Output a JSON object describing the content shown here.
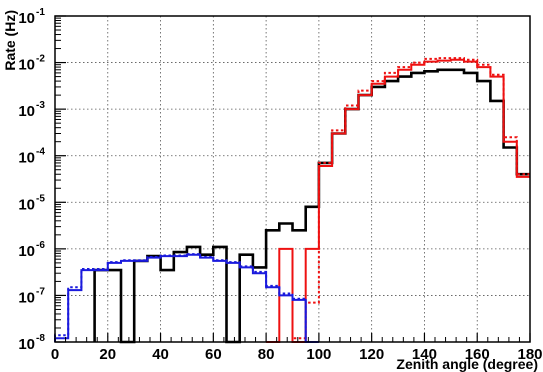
{
  "chart_data": {
    "type": "line",
    "xlabel": "Zenith angle (degree)",
    "ylabel": "Rate (Hz)",
    "xlim": [
      0,
      180
    ],
    "ylim": [
      1e-08,
      0.1
    ],
    "yscale": "log",
    "grid": true,
    "x_ticks": [
      0,
      20,
      40,
      60,
      80,
      100,
      120,
      140,
      160,
      180
    ],
    "y_ticks": [
      {
        "value": 1e-08,
        "label": "10",
        "exp": "-8"
      },
      {
        "value": 1e-07,
        "label": "10",
        "exp": "-7"
      },
      {
        "value": 1e-06,
        "label": "10",
        "exp": "-6"
      },
      {
        "value": 1e-05,
        "label": "10",
        "exp": "-5"
      },
      {
        "value": 0.0001,
        "label": "10",
        "exp": "-4"
      },
      {
        "value": 0.001,
        "label": "10",
        "exp": "-3"
      },
      {
        "value": 0.01,
        "label": "10",
        "exp": "-2"
      },
      {
        "value": 0.1,
        "label": "10",
        "exp": "-1"
      }
    ],
    "bin_edges": [
      0,
      5,
      10,
      15,
      20,
      25,
      30,
      35,
      40,
      45,
      50,
      55,
      60,
      65,
      70,
      75,
      80,
      85,
      90,
      95,
      100,
      105,
      110,
      115,
      120,
      125,
      130,
      135,
      140,
      145,
      150,
      155,
      160,
      165,
      170,
      175,
      180
    ],
    "series": [
      {
        "color": "#000000",
        "style": "solid",
        "values": [
          0,
          0,
          0,
          3.5e-07,
          3.5e-07,
          1e-08,
          5.5e-07,
          7e-07,
          3.5e-07,
          8.5e-07,
          1.1e-06,
          7.5e-07,
          1.1e-06,
          1e-08,
          7.5e-07,
          4e-07,
          2.5e-06,
          3.5e-06,
          2.5e-06,
          8e-06,
          7e-05,
          0.0003,
          0.001,
          0.002,
          0.003,
          0.004,
          0.005,
          0.006,
          0.0065,
          0.007,
          0.007,
          0.006,
          0.004,
          0.0015,
          0.00015,
          4e-05
        ]
      },
      {
        "color": "#ee1111",
        "style": "solid",
        "values": [
          0,
          0,
          0,
          0,
          0,
          0,
          0,
          0,
          0,
          0,
          0,
          0,
          0,
          0,
          0,
          0,
          1e-08,
          1e-06,
          1e-08,
          1e-06,
          6e-05,
          0.0003,
          0.001,
          0.002,
          0.0035,
          0.005,
          0.007,
          0.009,
          0.0105,
          0.011,
          0.0115,
          0.0105,
          0.008,
          0.005,
          0.0002,
          3.5e-05
        ]
      },
      {
        "color": "#ee1111",
        "style": "dotted",
        "values": [
          0,
          0,
          0,
          0,
          0,
          0,
          0,
          0,
          0,
          0,
          0,
          0,
          0,
          0,
          0,
          0,
          0,
          0,
          1.2e-08,
          7e-08,
          7e-05,
          0.00035,
          0.0012,
          0.0025,
          0.004,
          0.006,
          0.008,
          0.01,
          0.012,
          0.0125,
          0.0125,
          0.0115,
          0.009,
          0.0055,
          0.00025,
          4e-05
        ]
      },
      {
        "color": "#1a1add",
        "style": "solid",
        "values": [
          1.2e-08,
          1.3e-07,
          3.5e-07,
          3.5e-07,
          5e-07,
          5.5e-07,
          5.5e-07,
          6.5e-07,
          7e-07,
          7e-07,
          7.5e-07,
          6.5e-07,
          5.5e-07,
          5e-07,
          4e-07,
          3e-07,
          1.5e-07,
          1e-07,
          8e-08,
          1e-08,
          0,
          0,
          0,
          0,
          0,
          0,
          0,
          0,
          0,
          0,
          0,
          0,
          0,
          0,
          0,
          0
        ]
      },
      {
        "color": "#1a1add",
        "style": "dotted",
        "values": [
          1.4e-08,
          1.5e-07,
          3.7e-07,
          3.7e-07,
          5.2e-07,
          5.7e-07,
          5.7e-07,
          6.7e-07,
          7.2e-07,
          7.2e-07,
          7.7e-07,
          6.7e-07,
          5.7e-07,
          5.2e-07,
          4.2e-07,
          3.2e-07,
          1.6e-07,
          1.1e-07,
          8.5e-08,
          1e-08,
          0,
          0,
          0,
          0,
          0,
          0,
          0,
          0,
          0,
          0,
          0,
          0,
          0,
          0,
          0,
          0
        ]
      }
    ]
  }
}
